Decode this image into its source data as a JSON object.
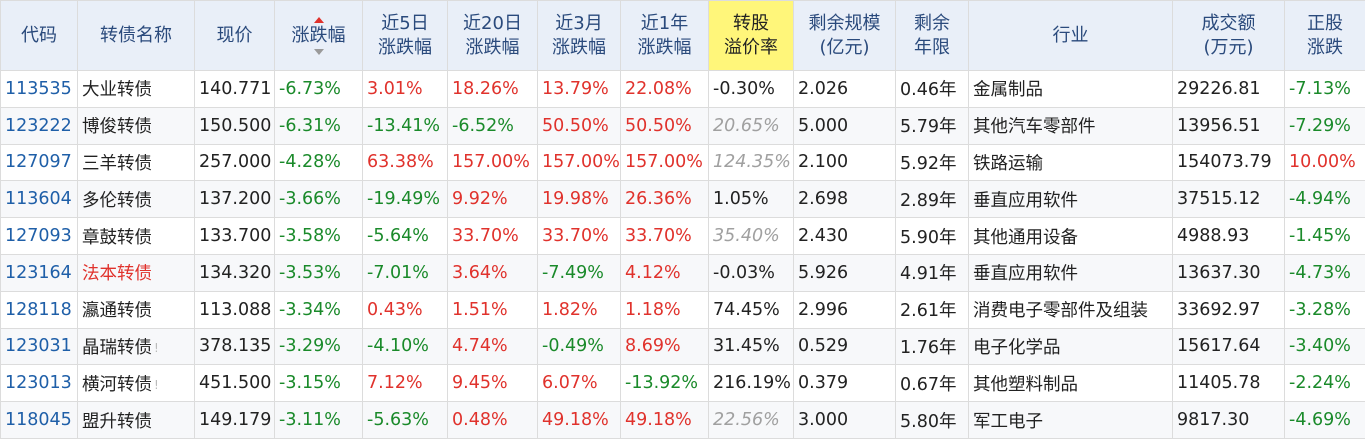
{
  "headers": {
    "code": "代码",
    "name": "转债名称",
    "price": "现价",
    "change": "涨跌幅",
    "d5": [
      "近5日",
      "涨跌幅"
    ],
    "d20": [
      "近20日",
      "涨跌幅"
    ],
    "m3": [
      "近3月",
      "涨跌幅"
    ],
    "y1": [
      "近1年",
      "涨跌幅"
    ],
    "premium": [
      "转股",
      "溢价率"
    ],
    "scale": [
      "剩余规模",
      "(亿元)"
    ],
    "years": [
      "剩余",
      "年限"
    ],
    "industry": "行业",
    "volume": [
      "成交额",
      "(万元)"
    ],
    "stock": [
      "正股",
      "涨跌"
    ]
  },
  "colors": {
    "header_bg": "#e9eff8",
    "header_text": "#2a4a7c",
    "highlight_header": "#fff67a",
    "up_red": "#e0322c",
    "down_green": "#1a8a2a",
    "code_blue": "#1f5fa8",
    "muted_gray": "#a0a0a0"
  },
  "rows": [
    {
      "code": "113535",
      "name": "大业转债",
      "name_red": false,
      "mark": "",
      "price": "140.771",
      "change": "-6.73%",
      "d5": "3.01%",
      "d20": "18.26%",
      "m3": "13.79%",
      "y1": "22.08%",
      "premium": "-0.30%",
      "premium_style": "black",
      "scale": "2.026",
      "years": "0.46年",
      "industry": "金属制品",
      "volume": "29226.81",
      "stock": "-7.13%"
    },
    {
      "code": "123222",
      "name": "博俊转债",
      "name_red": false,
      "mark": "",
      "price": "150.500",
      "change": "-6.31%",
      "d5": "-13.41%",
      "d20": "-6.52%",
      "m3": "50.50%",
      "y1": "50.50%",
      "premium": "20.65%",
      "premium_style": "gray-it",
      "scale": "5.000",
      "years": "5.79年",
      "industry": "其他汽车零部件",
      "volume": "13956.51",
      "stock": "-7.29%"
    },
    {
      "code": "127097",
      "name": "三羊转债",
      "name_red": false,
      "mark": "",
      "price": "257.000",
      "change": "-4.28%",
      "d5": "63.38%",
      "d20": "157.00%",
      "m3": "157.00%",
      "y1": "157.00%",
      "premium": "124.35%",
      "premium_style": "gray-it",
      "scale": "2.100",
      "years": "5.92年",
      "industry": "铁路运输",
      "volume": "154073.79",
      "stock": "10.00%"
    },
    {
      "code": "113604",
      "name": "多伦转债",
      "name_red": false,
      "mark": "",
      "price": "137.200",
      "change": "-3.66%",
      "d5": "-19.49%",
      "d20": "9.92%",
      "m3": "19.98%",
      "y1": "26.36%",
      "premium": "1.05%",
      "premium_style": "black",
      "scale": "2.698",
      "years": "2.89年",
      "industry": "垂直应用软件",
      "volume": "37515.12",
      "stock": "-4.94%"
    },
    {
      "code": "127093",
      "name": "章鼓转债",
      "name_red": false,
      "mark": "",
      "price": "133.700",
      "change": "-3.58%",
      "d5": "-5.64%",
      "d20": "33.70%",
      "m3": "33.70%",
      "y1": "33.70%",
      "premium": "35.40%",
      "premium_style": "gray-it",
      "scale": "2.430",
      "years": "5.90年",
      "industry": "其他通用设备",
      "volume": "4988.93",
      "stock": "-1.45%"
    },
    {
      "code": "123164",
      "name": "法本转债",
      "name_red": true,
      "mark": "",
      "price": "134.320",
      "change": "-3.53%",
      "d5": "-7.01%",
      "d20": "3.64%",
      "m3": "-7.49%",
      "y1": "4.12%",
      "premium": "-0.03%",
      "premium_style": "black",
      "scale": "5.926",
      "years": "4.91年",
      "industry": "垂直应用软件",
      "volume": "13637.30",
      "stock": "-4.73%"
    },
    {
      "code": "128118",
      "name": "瀛通转债",
      "name_red": false,
      "mark": "",
      "price": "113.088",
      "change": "-3.34%",
      "d5": "0.43%",
      "d20": "1.51%",
      "m3": "1.82%",
      "y1": "1.18%",
      "premium": "74.45%",
      "premium_style": "black",
      "scale": "2.996",
      "years": "2.61年",
      "industry": "消费电子零部件及组装",
      "volume": "33692.97",
      "stock": "-3.28%"
    },
    {
      "code": "123031",
      "name": "晶瑞转债",
      "name_red": false,
      "mark": "!",
      "price": "378.135",
      "change": "-3.29%",
      "d5": "-4.10%",
      "d20": "4.74%",
      "m3": "-0.49%",
      "y1": "8.69%",
      "premium": "31.45%",
      "premium_style": "black",
      "scale": "0.529",
      "years": "1.76年",
      "industry": "电子化学品",
      "volume": "15617.64",
      "stock": "-3.40%"
    },
    {
      "code": "123013",
      "name": "横河转债",
      "name_red": false,
      "mark": "!",
      "price": "451.500",
      "change": "-3.15%",
      "d5": "7.12%",
      "d20": "9.45%",
      "m3": "6.07%",
      "y1": "-13.92%",
      "premium": "216.19%",
      "premium_style": "black",
      "scale": "0.379",
      "years": "0.67年",
      "industry": "其他塑料制品",
      "volume": "11405.78",
      "stock": "-2.24%"
    },
    {
      "code": "118045",
      "name": "盟升转债",
      "name_red": false,
      "mark": "",
      "price": "149.179",
      "change": "-3.11%",
      "d5": "-5.63%",
      "d20": "0.48%",
      "m3": "49.18%",
      "y1": "49.18%",
      "premium": "22.56%",
      "premium_style": "gray-it",
      "scale": "3.000",
      "years": "5.80年",
      "industry": "军工电子",
      "volume": "9817.30",
      "stock": "-4.69%"
    }
  ]
}
